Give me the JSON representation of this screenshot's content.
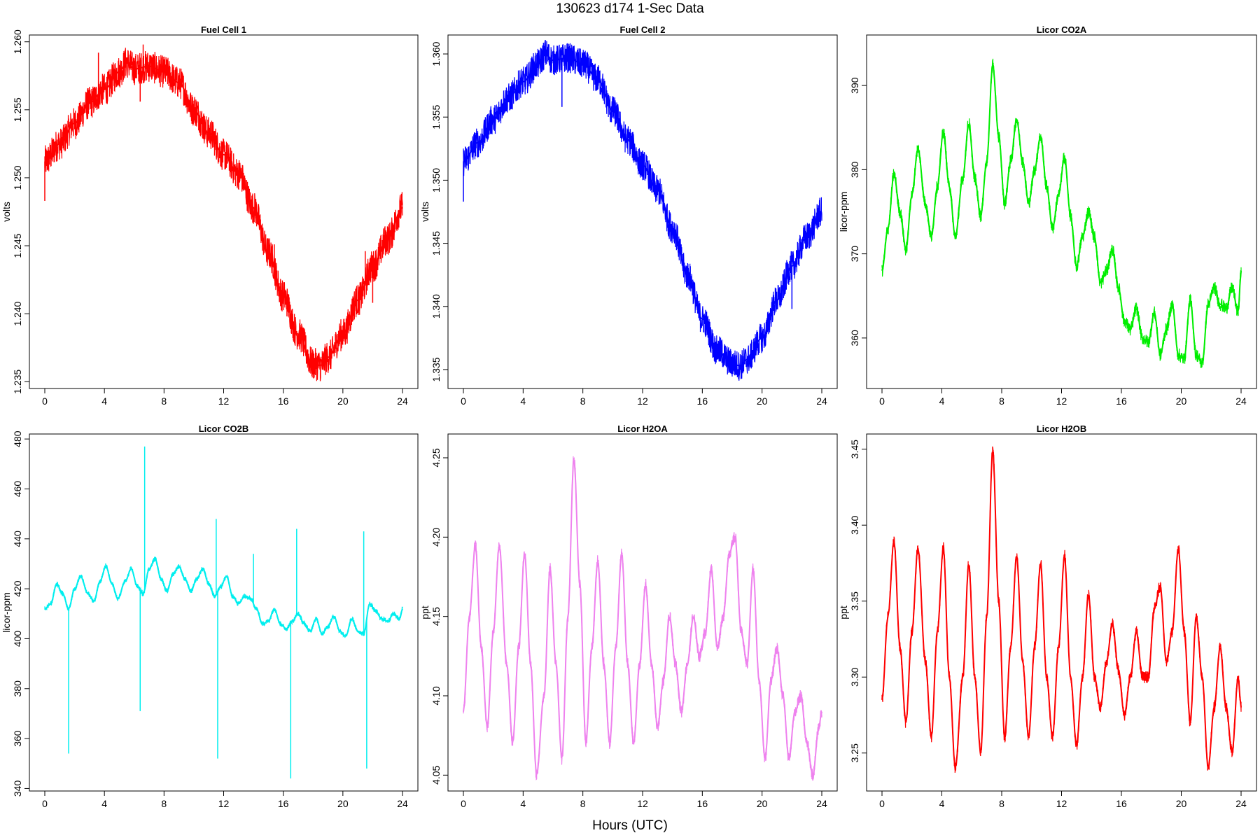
{
  "figure": {
    "title": "130623   d174   1-Sec Data",
    "xlabel": "Hours (UTC)"
  },
  "chart_data": [
    {
      "type": "line",
      "title": "Fuel Cell 1",
      "xlabel": "",
      "ylabel": "volts",
      "color": "#ff0000",
      "xlim": [
        0,
        24
      ],
      "ylim": [
        1.2345,
        1.2605
      ],
      "xticks": [
        0,
        4,
        8,
        12,
        16,
        20,
        24
      ],
      "xtick_labels": [
        "0",
        "4",
        "8",
        "12",
        "16",
        "20",
        "24"
      ],
      "yticks": [
        1.235,
        1.24,
        1.245,
        1.25,
        1.255,
        1.26
      ],
      "ytick_labels": [
        "1.235",
        "1.240",
        "1.245",
        "1.250",
        "1.255",
        "1.260"
      ],
      "noise": 0.0012,
      "x": [
        0,
        1,
        2,
        3,
        4,
        5,
        5.5,
        6,
        7,
        8,
        9,
        10,
        11,
        12,
        13,
        14,
        15,
        16,
        17,
        18,
        18.5,
        19,
        20,
        21,
        22,
        23,
        24
      ],
      "values": [
        1.2512,
        1.2525,
        1.254,
        1.2555,
        1.2565,
        1.2578,
        1.2585,
        1.258,
        1.2582,
        1.2578,
        1.257,
        1.255,
        1.2533,
        1.2517,
        1.2503,
        1.2478,
        1.2445,
        1.2413,
        1.2385,
        1.2363,
        1.2362,
        1.2368,
        1.2385,
        1.241,
        1.2435,
        1.2455,
        1.2478
      ],
      "spikes": [
        [
          0,
          1.2483
        ],
        [
          3.6,
          1.2592
        ],
        [
          6.4,
          1.2556
        ],
        [
          6.6,
          1.2598
        ],
        [
          15.4,
          1.2451
        ],
        [
          22.0,
          1.2408
        ],
        [
          21.5,
          1.2446
        ]
      ]
    },
    {
      "type": "line",
      "title": "Fuel Cell 2",
      "xlabel": "",
      "ylabel": "volts",
      "color": "#0000ff",
      "xlim": [
        0,
        24
      ],
      "ylim": [
        1.3335,
        1.3615
      ],
      "xticks": [
        0,
        4,
        8,
        12,
        16,
        20,
        24
      ],
      "xtick_labels": [
        "0",
        "4",
        "8",
        "12",
        "16",
        "20",
        "24"
      ],
      "yticks": [
        1.335,
        1.34,
        1.345,
        1.35,
        1.355,
        1.36
      ],
      "ytick_labels": [
        "1.335",
        "1.340",
        "1.345",
        "1.350",
        "1.355",
        "1.360"
      ],
      "noise": 0.0012,
      "x": [
        0,
        1,
        2,
        3,
        4,
        5,
        5.5,
        6,
        7,
        8,
        9,
        10,
        11,
        12,
        13,
        14,
        15,
        16,
        17,
        18,
        18.5,
        19,
        20,
        21,
        22,
        23,
        24
      ],
      "values": [
        1.3515,
        1.353,
        1.3548,
        1.3565,
        1.3578,
        1.3592,
        1.36,
        1.3595,
        1.3597,
        1.3592,
        1.358,
        1.3555,
        1.3532,
        1.3512,
        1.3492,
        1.3462,
        1.3425,
        1.339,
        1.3365,
        1.3355,
        1.3353,
        1.3358,
        1.3375,
        1.3405,
        1.3432,
        1.3455,
        1.3475
      ],
      "spikes": [
        [
          0,
          1.3483
        ],
        [
          6.6,
          1.3558
        ],
        [
          22.0,
          1.3398
        ]
      ]
    },
    {
      "type": "line",
      "title": "Licor CO2A",
      "xlabel": "",
      "ylabel": "licor-ppm",
      "color": "#00ee00",
      "xlim": [
        0,
        24
      ],
      "ylim": [
        354,
        396
      ],
      "xticks": [
        0,
        4,
        8,
        12,
        16,
        20,
        24
      ],
      "xtick_labels": [
        "0",
        "4",
        "8",
        "12",
        "16",
        "20",
        "24"
      ],
      "yticks": [
        360,
        370,
        380,
        390
      ],
      "ytick_labels": [
        "360",
        "370",
        "380",
        "390"
      ],
      "noise": 0.8,
      "x": [
        0,
        0.4,
        0.8,
        1.2,
        1.6,
        2.0,
        2.4,
        2.9,
        3.3,
        3.7,
        4.1,
        4.5,
        4.9,
        5.4,
        5.8,
        6.2,
        6.6,
        7.0,
        7.4,
        7.8,
        8.2,
        8.6,
        9.0,
        9.4,
        9.8,
        10.2,
        10.6,
        11.0,
        11.4,
        11.8,
        12.2,
        12.6,
        13.0,
        13.4,
        13.8,
        14.2,
        14.6,
        15.0,
        15.4,
        15.8,
        16.2,
        16.6,
        17.0,
        17.4,
        17.8,
        18.2,
        18.6,
        19.0,
        19.4,
        19.8,
        20.2,
        20.6,
        21.0,
        21.4,
        21.8,
        22.2,
        22.6,
        23.0,
        23.4,
        23.8,
        24.0
      ],
      "values": [
        368,
        373,
        379.5,
        375,
        370.5,
        377,
        382.5,
        376,
        372,
        378,
        384.5,
        378,
        372,
        379,
        385.5,
        379,
        374.5,
        381,
        392.5,
        384,
        376,
        381,
        386,
        381,
        376,
        380,
        384,
        378,
        373,
        377,
        381.5,
        374.5,
        368.5,
        372,
        375,
        372,
        366.5,
        368,
        370.5,
        366,
        362,
        361,
        363.5,
        360,
        359.5,
        363,
        358,
        361,
        364,
        358,
        357.5,
        364.5,
        358,
        357,
        364,
        366,
        364,
        363.5,
        366,
        363,
        368
      ]
    },
    {
      "type": "line",
      "title": "Licor CO2B",
      "xlabel": "",
      "ylabel": "licor-ppm",
      "color": "#00eeee",
      "xlim": [
        0,
        24
      ],
      "ylim": [
        339,
        482
      ],
      "xticks": [
        0,
        4,
        8,
        12,
        16,
        20,
        24
      ],
      "xtick_labels": [
        "0",
        "4",
        "8",
        "12",
        "16",
        "20",
        "24"
      ],
      "yticks": [
        340,
        360,
        380,
        400,
        420,
        440,
        460,
        480
      ],
      "ytick_labels": [
        "340",
        "360",
        "380",
        "400",
        "420",
        "440",
        "460",
        "480"
      ],
      "noise": 1.0,
      "x": [
        0,
        0.4,
        0.8,
        1.2,
        1.6,
        2.0,
        2.4,
        2.9,
        3.3,
        3.7,
        4.1,
        4.5,
        4.9,
        5.4,
        5.8,
        6.2,
        6.6,
        7.0,
        7.4,
        7.8,
        8.2,
        8.6,
        9.0,
        9.4,
        9.8,
        10.2,
        10.6,
        11.0,
        11.4,
        11.8,
        12.2,
        12.6,
        13.0,
        13.4,
        13.8,
        14.2,
        14.6,
        15.0,
        15.4,
        15.8,
        16.2,
        16.6,
        17.0,
        17.4,
        17.8,
        18.2,
        18.6,
        19.0,
        19.4,
        19.8,
        20.2,
        20.6,
        21.0,
        21.4,
        21.8,
        22.2,
        22.6,
        23.0,
        23.4,
        23.8,
        24.0
      ],
      "values": [
        412,
        414,
        422,
        418,
        412,
        420,
        425,
        418,
        415,
        423,
        429,
        422,
        416,
        423,
        428,
        421,
        418,
        428,
        432,
        424,
        419,
        426,
        429,
        424,
        419,
        424,
        428,
        422,
        417,
        421,
        425,
        417,
        414,
        417,
        416,
        412,
        406,
        407,
        412,
        406,
        404,
        407,
        410,
        406,
        403,
        408,
        402,
        405,
        409,
        403,
        401,
        408,
        403,
        402,
        414,
        411,
        408,
        407,
        410,
        408,
        412
      ],
      "spikes": [
        [
          1.6,
          354
        ],
        [
          6.4,
          371
        ],
        [
          6.7,
          477
        ],
        [
          11.6,
          352
        ],
        [
          11.5,
          448
        ],
        [
          14.0,
          434
        ],
        [
          16.5,
          344
        ],
        [
          16.9,
          444
        ],
        [
          21.6,
          348
        ],
        [
          21.4,
          443
        ]
      ]
    },
    {
      "type": "line",
      "title": "Licor H2OA",
      "xlabel": "",
      "ylabel": "ppt",
      "color": "#ee82ee",
      "xlim": [
        0,
        24
      ],
      "ylim": [
        4.04,
        4.265
      ],
      "xticks": [
        0,
        4,
        8,
        12,
        16,
        20,
        24
      ],
      "xtick_labels": [
        "0",
        "4",
        "8",
        "12",
        "16",
        "20",
        "24"
      ],
      "yticks": [
        4.05,
        4.1,
        4.15,
        4.2,
        4.25
      ],
      "ytick_labels": [
        "4.05",
        "4.10",
        "4.15",
        "4.20",
        "4.25"
      ],
      "noise": 0.004,
      "x": [
        0,
        0.4,
        0.8,
        1.2,
        1.6,
        2.0,
        2.4,
        2.9,
        3.3,
        3.7,
        4.1,
        4.5,
        4.9,
        5.4,
        5.8,
        6.2,
        6.6,
        7.0,
        7.4,
        7.8,
        8.2,
        8.6,
        9.0,
        9.4,
        9.8,
        10.2,
        10.6,
        11.0,
        11.4,
        11.8,
        12.2,
        12.6,
        13.0,
        13.4,
        13.8,
        14.2,
        14.6,
        15.0,
        15.4,
        15.8,
        16.2,
        16.6,
        17.0,
        17.4,
        17.8,
        18.2,
        18.6,
        19.0,
        19.4,
        19.8,
        20.2,
        20.6,
        21.0,
        21.4,
        21.8,
        22.2,
        22.6,
        23.0,
        23.4,
        23.8,
        24.0
      ],
      "values": [
        4.09,
        4.15,
        4.195,
        4.13,
        4.08,
        4.14,
        4.195,
        4.12,
        4.07,
        4.13,
        4.19,
        4.12,
        4.05,
        4.1,
        4.18,
        4.12,
        4.06,
        4.15,
        4.25,
        4.17,
        4.07,
        4.13,
        4.185,
        4.12,
        4.07,
        4.13,
        4.19,
        4.12,
        4.07,
        4.12,
        4.17,
        4.12,
        4.08,
        4.11,
        4.15,
        4.12,
        4.09,
        4.12,
        4.15,
        4.125,
        4.14,
        4.18,
        4.13,
        4.15,
        4.19,
        4.2,
        4.14,
        4.12,
        4.18,
        4.11,
        4.06,
        4.11,
        4.13,
        4.1,
        4.06,
        4.09,
        4.1,
        4.07,
        4.05,
        4.08,
        4.09
      ]
    },
    {
      "type": "line",
      "title": "Licor H2OB",
      "xlabel": "",
      "ylabel": "ppt",
      "color": "#ff0000",
      "xlim": [
        0,
        24
      ],
      "ylim": [
        3.225,
        3.46
      ],
      "xticks": [
        0,
        4,
        8,
        12,
        16,
        20,
        24
      ],
      "xtick_labels": [
        "0",
        "4",
        "8",
        "12",
        "16",
        "20",
        "24"
      ],
      "yticks": [
        3.25,
        3.3,
        3.35,
        3.4,
        3.45
      ],
      "ytick_labels": [
        "3.25",
        "3.30",
        "3.35",
        "3.40",
        "3.45"
      ],
      "noise": 0.004,
      "x": [
        0,
        0.4,
        0.8,
        1.2,
        1.6,
        2.0,
        2.4,
        2.9,
        3.3,
        3.7,
        4.1,
        4.5,
        4.9,
        5.4,
        5.8,
        6.2,
        6.6,
        7.0,
        7.4,
        7.8,
        8.2,
        8.6,
        9.0,
        9.4,
        9.8,
        10.2,
        10.6,
        11.0,
        11.4,
        11.8,
        12.2,
        12.6,
        13.0,
        13.4,
        13.8,
        14.2,
        14.6,
        15.0,
        15.4,
        15.8,
        16.2,
        16.6,
        17.0,
        17.4,
        17.8,
        18.2,
        18.6,
        19.0,
        19.4,
        19.8,
        20.2,
        20.6,
        21.0,
        21.4,
        21.8,
        22.2,
        22.6,
        23.0,
        23.4,
        23.8,
        24.0
      ],
      "values": [
        3.285,
        3.34,
        3.39,
        3.32,
        3.27,
        3.33,
        3.385,
        3.31,
        3.26,
        3.33,
        3.385,
        3.3,
        3.24,
        3.3,
        3.375,
        3.3,
        3.25,
        3.34,
        3.45,
        3.35,
        3.26,
        3.32,
        3.38,
        3.31,
        3.26,
        3.32,
        3.375,
        3.3,
        3.26,
        3.32,
        3.38,
        3.3,
        3.255,
        3.3,
        3.355,
        3.3,
        3.28,
        3.31,
        3.335,
        3.305,
        3.275,
        3.3,
        3.33,
        3.3,
        3.3,
        3.345,
        3.36,
        3.31,
        3.33,
        3.385,
        3.33,
        3.27,
        3.34,
        3.3,
        3.24,
        3.28,
        3.32,
        3.28,
        3.25,
        3.3,
        3.28
      ]
    }
  ]
}
